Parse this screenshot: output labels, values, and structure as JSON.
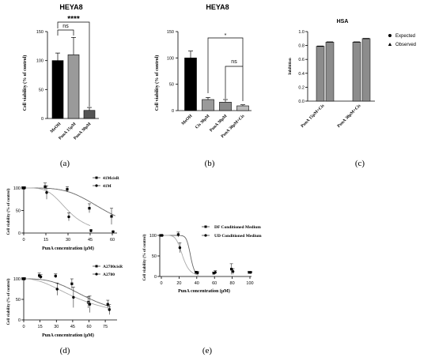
{
  "panel_labels": {
    "a": "(a)",
    "b": "(b)",
    "c": "(c)",
    "d": "(d)",
    "e": "(e)"
  },
  "chart_data": [
    {
      "id": "a",
      "type": "bar",
      "title": "HEYA8",
      "ylabel": "Cell viability (% of control)",
      "xlabel": "",
      "ylim": [
        0,
        150
      ],
      "yticks": [
        "0",
        "50",
        "100",
        "150"
      ],
      "categories": [
        "MeOH",
        "PunA 15μM",
        "PunA 30μM"
      ],
      "values": [
        100,
        110,
        14
      ],
      "errors": [
        13,
        30,
        5
      ],
      "bar_colors": [
        "#000000",
        "#9a9a9a",
        "#555555"
      ],
      "significance": [
        {
          "from": 0,
          "to": 1,
          "label": "ns"
        },
        {
          "from": 0,
          "to": 2,
          "label": "****"
        }
      ]
    },
    {
      "id": "b",
      "type": "bar",
      "title": "HEYA8",
      "ylabel": "Cell viability (% of control)",
      "xlabel": "",
      "ylim": [
        0,
        150
      ],
      "yticks": [
        "0",
        "50",
        "100",
        "150"
      ],
      "categories": [
        "MeOH",
        "Cis 30μM",
        "PunA 30μM",
        "PunA 30μM+Cis"
      ],
      "values": [
        100,
        21,
        16,
        9
      ],
      "errors": [
        13,
        4,
        5,
        2
      ],
      "bar_colors": [
        "#000000",
        "#9a9a9a",
        "#8a8a8a",
        "#bbbbbb"
      ],
      "significance": [
        {
          "from": 1,
          "to": 3,
          "label": "*"
        },
        {
          "from": 2,
          "to": 3,
          "label": "ns"
        }
      ]
    },
    {
      "id": "c",
      "type": "bar",
      "title": "HSA",
      "ylabel": "Inhibition",
      "xlabel": "",
      "ylim": [
        0,
        1.0
      ],
      "yticks": [
        "0.0",
        "0.2",
        "0.4",
        "0.6",
        "0.8",
        "1.0"
      ],
      "categories": [
        "PunA 15μM+Cis",
        "PunA 30μM+Cis"
      ],
      "series": [
        {
          "name": "Expected",
          "values": [
            0.79,
            0.85
          ]
        },
        {
          "name": "Observed",
          "values": [
            0.85,
            0.9
          ]
        }
      ],
      "legend": "right"
    },
    {
      "id": "d-top",
      "type": "scatter",
      "xlabel": "PunA concentration (μM)",
      "ylabel": "Cell viability (% of control)",
      "xlim": [
        0,
        60
      ],
      "ylim": [
        0,
        100
      ],
      "xticks": [
        "0",
        "15",
        "30",
        "45",
        "60"
      ],
      "yticks": [
        "0",
        "50",
        "100"
      ],
      "series": [
        {
          "name": "41McisR",
          "x": [
            0,
            15,
            30,
            45,
            60
          ],
          "y": [
            100,
            103,
            97,
            55,
            37
          ],
          "err": [
            3,
            8,
            6,
            10,
            18
          ]
        },
        {
          "name": "41M",
          "x": [
            0,
            15,
            30,
            45,
            60
          ],
          "y": [
            100,
            90,
            36,
            5,
            3
          ],
          "err": [
            3,
            15,
            9,
            3,
            2
          ]
        }
      ]
    },
    {
      "id": "d-bottom",
      "type": "scatter",
      "xlabel": "PunA concentration (μM)",
      "ylabel": "Cell viability (% of control)",
      "xlim": [
        0,
        80
      ],
      "ylim": [
        0,
        100
      ],
      "xticks": [
        "0",
        "15",
        "30",
        "45",
        "60",
        "75"
      ],
      "yticks": [
        "0",
        "50",
        "100"
      ],
      "series": [
        {
          "name": "A2780cisR",
          "x": [
            0,
            15,
            30,
            45,
            60,
            78
          ],
          "y": [
            100,
            108,
            107,
            88,
            43,
            38
          ],
          "err": [
            3,
            6,
            5,
            12,
            14,
            10
          ]
        },
        {
          "name": "A2780",
          "x": [
            0,
            15,
            30,
            45,
            60,
            78
          ],
          "y": [
            100,
            105,
            75,
            55,
            38,
            25
          ],
          "err": [
            3,
            5,
            15,
            25,
            20,
            12
          ]
        }
      ]
    },
    {
      "id": "e",
      "type": "scatter",
      "xlabel": "PunA concentration (μM)",
      "ylabel": "Cell viability (% of control)",
      "xlim": [
        0,
        100
      ],
      "ylim": [
        0,
        100
      ],
      "xticks": [
        "0",
        "20",
        "40",
        "60",
        "80",
        "100"
      ],
      "yticks": [
        "0",
        "50",
        "100"
      ],
      "series": [
        {
          "name": "DF Conditioned Medium",
          "x": [
            0,
            20,
            40,
            60,
            80,
            100
          ],
          "y": [
            100,
            102,
            10,
            8,
            18,
            10
          ],
          "err": [
            0,
            6,
            3,
            3,
            13,
            2
          ]
        },
        {
          "name": "UD Conditioned Medium",
          "x": [
            0,
            20,
            40,
            60,
            80,
            100
          ],
          "y": [
            100,
            70,
            9,
            10,
            12,
            10
          ],
          "err": [
            0,
            12,
            3,
            4,
            7,
            2
          ]
        }
      ]
    }
  ]
}
